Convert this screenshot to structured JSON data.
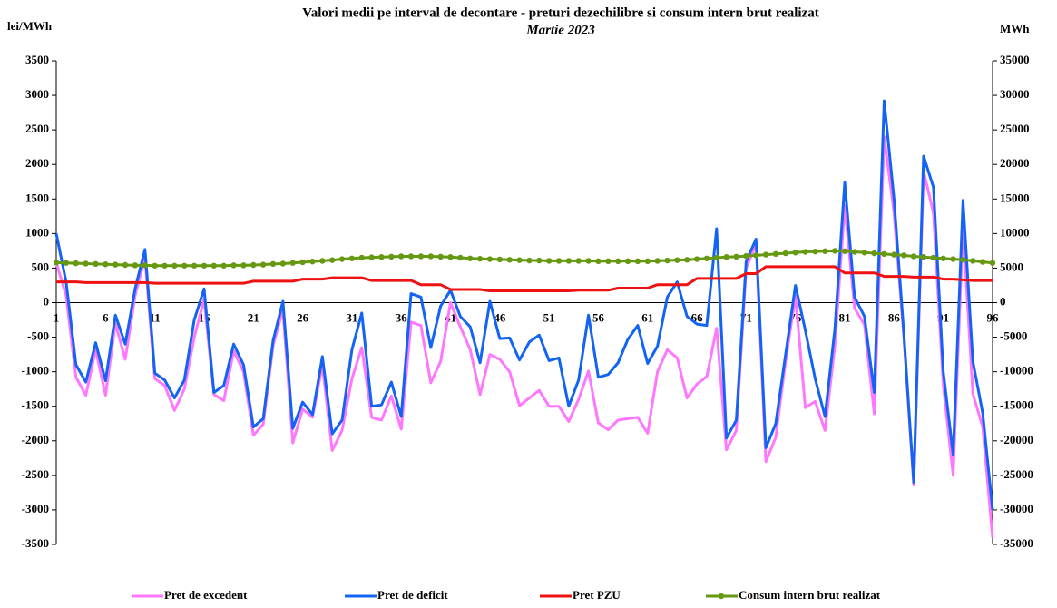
{
  "chart_data": {
    "type": "line",
    "title": "Valori medii pe interval de decontare - preturi dezechilibre si consum intern brut realizat",
    "subtitle": "Martie 2023",
    "y_label": "lei/MWh",
    "y2_label": "MWh",
    "categories": [
      1,
      null,
      null,
      null,
      null,
      6,
      null,
      null,
      null,
      null,
      11,
      null,
      null,
      null,
      null,
      16,
      null,
      null,
      null,
      null,
      21,
      null,
      null,
      null,
      null,
      26,
      null,
      null,
      null,
      null,
      31,
      null,
      null,
      null,
      null,
      36,
      null,
      null,
      null,
      null,
      41,
      null,
      null,
      null,
      null,
      46,
      null,
      null,
      null,
      null,
      51,
      null,
      null,
      null,
      null,
      56,
      null,
      null,
      null,
      null,
      61,
      null,
      null,
      null,
      null,
      66,
      null,
      null,
      null,
      null,
      71,
      null,
      null,
      null,
      null,
      76,
      null,
      null,
      null,
      null,
      81,
      null,
      null,
      null,
      null,
      86,
      null,
      null,
      null,
      null,
      91,
      null,
      null,
      null,
      null,
      96
    ],
    "ylim": [
      -3500,
      3500
    ],
    "yticks": [
      -3500,
      -3000,
      -2500,
      -2000,
      -1500,
      -1000,
      -500,
      0,
      500,
      1000,
      1500,
      2000,
      2500,
      3000,
      3500
    ],
    "y2lim": [
      -35000,
      35000
    ],
    "y2ticks": [
      -35000,
      -30000,
      -25000,
      -20000,
      -15000,
      -10000,
      -5000,
      0,
      5000,
      10000,
      15000,
      20000,
      25000,
      30000,
      35000
    ],
    "legend": "bottom",
    "series": [
      {
        "name": "Pret de excedent",
        "color": "#ff77ff",
        "values": [
          580,
          100,
          -1080,
          -1340,
          -680,
          -1340,
          -300,
          -820,
          100,
          650,
          -1100,
          -1200,
          -1560,
          -1250,
          -500,
          50,
          -1330,
          -1420,
          -700,
          -1000,
          -1920,
          -1760,
          -620,
          -100,
          -2030,
          -1540,
          -1660,
          -900,
          -2140,
          -1850,
          -1100,
          -650,
          -1660,
          -1700,
          -1350,
          -1830,
          -280,
          -330,
          -1160,
          -850,
          0,
          -350,
          -680,
          -1330,
          -750,
          -820,
          -1000,
          -1490,
          -1380,
          -1270,
          -1500,
          -1500,
          -1720,
          -1400,
          -990,
          -1740,
          -1840,
          -1700,
          -1680,
          -1660,
          -1890,
          -1000,
          -680,
          -800,
          -1380,
          -1180,
          -1070,
          -370,
          -2130,
          -1850,
          500,
          850,
          -2300,
          -1950,
          -850,
          100,
          -1520,
          -1430,
          -1850,
          -620,
          1400,
          -80,
          -320,
          -1610,
          2400,
          1300,
          -500,
          -2640,
          1900,
          1300,
          -1200,
          -2500,
          1100,
          -1320,
          -1800,
          -3400
        ]
      },
      {
        "name": "Pret de deficit",
        "color": "#1464f4",
        "values": [
          1000,
          300,
          -900,
          -1150,
          -580,
          -1130,
          -180,
          -600,
          200,
          770,
          -1020,
          -1120,
          -1380,
          -1120,
          -250,
          200,
          -1300,
          -1200,
          -600,
          -900,
          -1800,
          -1680,
          -550,
          20,
          -1820,
          -1440,
          -1620,
          -780,
          -1900,
          -1700,
          -680,
          -150,
          -1500,
          -1480,
          -1150,
          -1650,
          130,
          80,
          -650,
          -50,
          180,
          -200,
          -350,
          -870,
          20,
          -520,
          -510,
          -830,
          -570,
          -470,
          -840,
          -800,
          -1500,
          -1120,
          -180,
          -1080,
          -1040,
          -870,
          -530,
          -330,
          -880,
          -630,
          80,
          300,
          -200,
          -310,
          -330,
          1070,
          -1960,
          -1700,
          600,
          920,
          -2100,
          -1750,
          -750,
          250,
          -400,
          -1100,
          -1650,
          -380,
          1740,
          80,
          -200,
          -1300,
          2920,
          1500,
          -450,
          -2600,
          2120,
          1670,
          -1000,
          -2200,
          1480,
          -850,
          -1600,
          -3000
        ]
      },
      {
        "name": "Pret PZU",
        "color": "#ee1111",
        "values": [
          300,
          300,
          300,
          290,
          290,
          290,
          290,
          290,
          290,
          290,
          280,
          280,
          280,
          280,
          280,
          280,
          280,
          280,
          280,
          280,
          310,
          310,
          310,
          310,
          310,
          340,
          340,
          340,
          360,
          360,
          360,
          360,
          320,
          320,
          320,
          320,
          320,
          260,
          260,
          260,
          190,
          190,
          190,
          190,
          170,
          170,
          170,
          170,
          170,
          170,
          170,
          170,
          170,
          180,
          180,
          180,
          180,
          210,
          210,
          210,
          210,
          260,
          260,
          260,
          260,
          350,
          350,
          350,
          350,
          350,
          420,
          420,
          520,
          520,
          520,
          520,
          520,
          520,
          520,
          520,
          430,
          430,
          430,
          430,
          380,
          380,
          380,
          370,
          370,
          370,
          340,
          340,
          330,
          320,
          320,
          320
        ]
      },
      {
        "name": "Consum intern brut realizat",
        "color": "#669911",
        "axis": "y2",
        "marker": "circle",
        "values": [
          5800,
          5750,
          5700,
          5650,
          5600,
          5550,
          5500,
          5450,
          5400,
          5400,
          5350,
          5350,
          5350,
          5350,
          5350,
          5350,
          5350,
          5350,
          5400,
          5400,
          5450,
          5500,
          5600,
          5650,
          5750,
          5850,
          5950,
          6050,
          6150,
          6300,
          6400,
          6500,
          6550,
          6600,
          6650,
          6700,
          6700,
          6700,
          6700,
          6650,
          6600,
          6500,
          6400,
          6350,
          6300,
          6250,
          6200,
          6150,
          6100,
          6100,
          6050,
          6050,
          6050,
          6050,
          6050,
          6000,
          6000,
          6000,
          6000,
          6000,
          6000,
          6050,
          6100,
          6150,
          6200,
          6300,
          6400,
          6500,
          6600,
          6650,
          6750,
          6850,
          6950,
          7050,
          7150,
          7250,
          7350,
          7400,
          7450,
          7500,
          7450,
          7350,
          7250,
          7150,
          7050,
          6950,
          6850,
          6700,
          6600,
          6500,
          6400,
          6300,
          6200,
          6050,
          5900,
          5750
        ]
      }
    ]
  }
}
